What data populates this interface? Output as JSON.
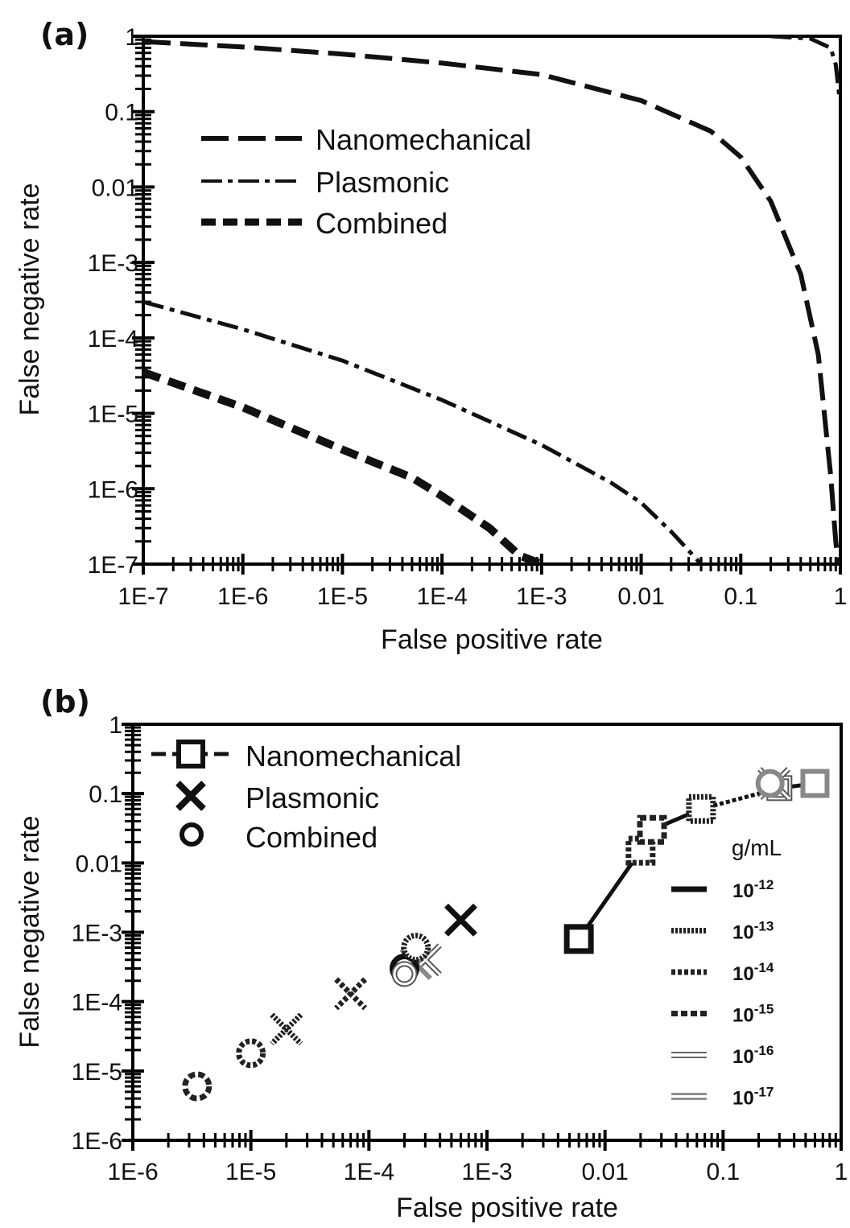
{
  "chart_data": [
    {
      "type": "line",
      "panel_label": "(a)",
      "xlabel": "False positive rate",
      "ylabel": "False negative rate",
      "x_scale": "log",
      "y_scale": "log",
      "xlim": [
        1e-07,
        1
      ],
      "ylim": [
        1e-07,
        1
      ],
      "x_tick_labels": [
        "1E-7",
        "1E-6",
        "1E-5",
        "1E-4",
        "1E-3",
        "0.01",
        "0.1",
        "1"
      ],
      "y_tick_labels": [
        "1E-7",
        "1E-6",
        "1E-5",
        "1E-4",
        "1E-3",
        "0.01",
        "0.1",
        "1"
      ],
      "legend_placement": "upper-left",
      "series": [
        {
          "name": "Nanomechanical",
          "style": "long-dash",
          "x": [
            1e-07,
            1e-06,
            1e-05,
            0.0001,
            0.001,
            0.01,
            0.05,
            0.1,
            0.2,
            0.4,
            0.6,
            0.8,
            0.9,
            0.95,
            0.97
          ],
          "y": [
            0.85,
            0.72,
            0.58,
            0.44,
            0.31,
            0.14,
            0.055,
            0.025,
            0.0065,
            0.0007,
            6e-05,
            1.5e-06,
            2e-07,
            1e-07,
            1e-07
          ]
        },
        {
          "name": "Plasmonic",
          "style": "dash-dot",
          "x": [
            1e-07,
            1e-06,
            1e-05,
            0.0001,
            0.001,
            0.005,
            0.01,
            0.02,
            0.04,
            0.2,
            0.5,
            0.8,
            0.9,
            0.97
          ],
          "y": [
            0.0003,
            0.00013,
            5e-05,
            1.5e-05,
            3.8e-06,
            1.2e-06,
            6.5e-07,
            2.7e-07,
            1e-07,
            1,
            0.93,
            0.7,
            0.42,
            0.17
          ]
        },
        {
          "name": "Combined",
          "style": "short-thick-dash",
          "x": [
            1e-07,
            1e-06,
            1e-05,
            5e-05,
            0.0001,
            0.0003,
            0.0006,
            0.001
          ],
          "y": [
            3.5e-05,
            1.2e-05,
            3.3e-06,
            1.4e-06,
            8e-07,
            3e-07,
            1.3e-07,
            1e-07
          ]
        }
      ]
    },
    {
      "type": "scatter",
      "panel_label": "(b)",
      "xlabel": "False positive rate",
      "ylabel": "False negative rate",
      "x_scale": "log",
      "y_scale": "log",
      "xlim": [
        1e-06,
        1
      ],
      "ylim": [
        1e-06,
        1
      ],
      "x_tick_labels": [
        "1E-6",
        "1E-5",
        "1E-4",
        "1E-3",
        "0.01",
        "0.1",
        "1"
      ],
      "y_tick_labels": [
        "1E-6",
        "1E-5",
        "1E-4",
        "1E-3",
        "0.01",
        "0.1",
        "1"
      ],
      "legend_placement": "upper-left",
      "conc_legend": {
        "title": "g/mL",
        "placement": "right",
        "entries": [
          {
            "base": "10",
            "exp": "-12",
            "style": "solid-thick"
          },
          {
            "base": "10",
            "exp": "-13",
            "style": "dotted"
          },
          {
            "base": "10",
            "exp": "-14",
            "style": "dense-dash"
          },
          {
            "base": "10",
            "exp": "-15",
            "style": "dash"
          },
          {
            "base": "10",
            "exp": "-16",
            "style": "double-thin"
          },
          {
            "base": "10",
            "exp": "-17",
            "style": "gray-double"
          }
        ]
      },
      "series": [
        {
          "name": "Nanomechanical",
          "marker": "square",
          "points": [
            {
              "x": 0.006,
              "y": 0.0008,
              "conc": "10-12"
            },
            {
              "x": 0.02,
              "y": 0.015,
              "conc": "10-14"
            },
            {
              "x": 0.025,
              "y": 0.03,
              "conc": "10-15"
            },
            {
              "x": 0.065,
              "y": 0.06,
              "conc": "10-13"
            },
            {
              "x": 0.3,
              "y": 0.12,
              "conc": "10-16"
            },
            {
              "x": 0.6,
              "y": 0.14,
              "conc": "10-17"
            }
          ]
        },
        {
          "name": "Plasmonic",
          "marker": "x",
          "points": [
            {
              "x": 0.0006,
              "y": 0.0015,
              "conc": "10-12"
            },
            {
              "x": 0.0003,
              "y": 0.0004,
              "conc": "10-16"
            },
            {
              "x": 0.00025,
              "y": 0.00035,
              "conc": "10-17"
            },
            {
              "x": 7e-05,
              "y": 0.00013,
              "conc": "10-14"
            },
            {
              "x": 2e-05,
              "y": 4e-05,
              "conc": "10-13"
            },
            {
              "x": 0.27,
              "y": 0.14,
              "conc": "10-16"
            }
          ]
        },
        {
          "name": "Combined",
          "marker": "circle",
          "points": [
            {
              "x": 0.0002,
              "y": 0.0003,
              "conc": "10-12"
            },
            {
              "x": 0.00025,
              "y": 0.0006,
              "conc": "10-13"
            },
            {
              "x": 0.0002,
              "y": 0.00025,
              "conc": "10-16"
            },
            {
              "x": 1e-05,
              "y": 1.8e-05,
              "conc": "10-14"
            },
            {
              "x": 3.5e-06,
              "y": 6e-06,
              "conc": "10-15"
            },
            {
              "x": 0.25,
              "y": 0.14,
              "conc": "10-17"
            }
          ]
        }
      ]
    }
  ]
}
